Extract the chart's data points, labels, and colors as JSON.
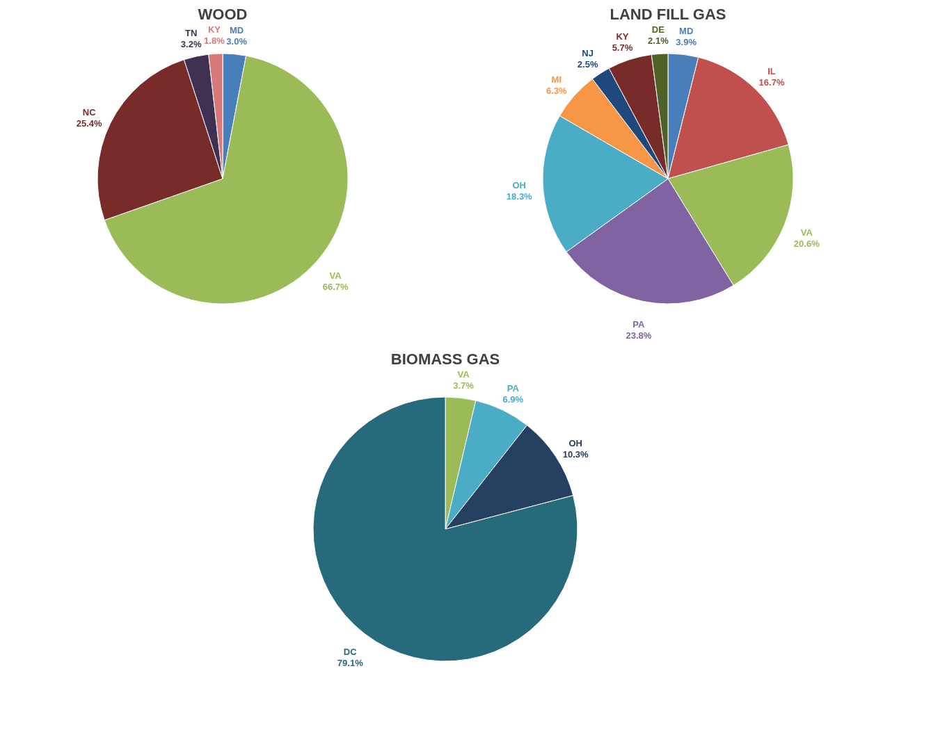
{
  "chart_data": [
    {
      "type": "pie",
      "title": "WOOD",
      "categories": [
        "MD",
        "VA",
        "NC",
        "TN",
        "KY"
      ],
      "values": [
        3.0,
        66.7,
        25.4,
        3.2,
        1.8
      ],
      "value_labels": [
        "3.0%",
        "66.7%",
        "25.4%",
        "3.2%",
        "1.8%"
      ],
      "colors": [
        "#4a7ebb",
        "#9bbb59",
        "#772c2a",
        "#403152",
        "#d9797a"
      ]
    },
    {
      "type": "pie",
      "title": "LAND FILL GAS",
      "categories": [
        "MD",
        "IL",
        "VA",
        "PA",
        "OH",
        "MI",
        "NJ",
        "KY",
        "DE"
      ],
      "values": [
        3.9,
        16.7,
        20.6,
        23.8,
        18.3,
        6.3,
        2.5,
        5.7,
        2.1
      ],
      "value_labels": [
        "3.9%",
        "16.7%",
        "20.6%",
        "23.8%",
        "18.3%",
        "6.3%",
        "2.5%",
        "5.7%",
        "2.1%"
      ],
      "colors": [
        "#4a7ebb",
        "#c0504d",
        "#9bbb59",
        "#8064a2",
        "#4bacc6",
        "#f79646",
        "#1f497d",
        "#772c2a",
        "#4f6228"
      ]
    },
    {
      "type": "pie",
      "title": "BIOMASS GAS",
      "categories": [
        "VA",
        "PA",
        "OH",
        "DC"
      ],
      "values": [
        3.7,
        6.9,
        10.3,
        79.1
      ],
      "value_labels": [
        "3.7%",
        "6.9%",
        "10.3%",
        "79.1%"
      ],
      "colors": [
        "#9bbb59",
        "#4bacc6",
        "#254061",
        "#276a7c"
      ]
    }
  ]
}
